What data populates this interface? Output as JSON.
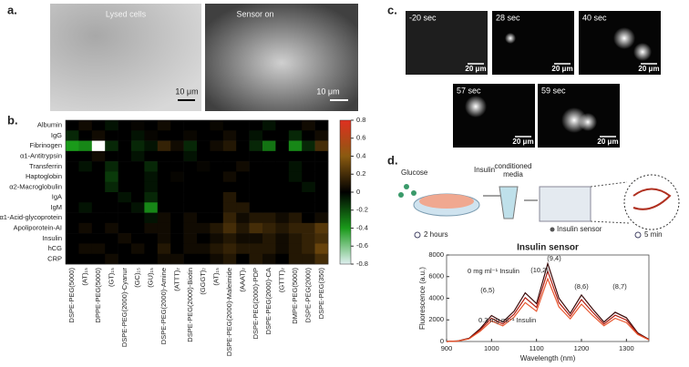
{
  "panel_labels": [
    "a.",
    "b.",
    "c.",
    "d."
  ],
  "panel_a": {
    "images": [
      {
        "label": "Lysed cells",
        "scale": "10 μm"
      },
      {
        "label": "Sensor on",
        "scale": "10 μm"
      }
    ]
  },
  "panel_c": {
    "frames": [
      {
        "time": "-20 sec",
        "scale": "20 μm"
      },
      {
        "time": "28 sec",
        "scale": "20 μm"
      },
      {
        "time": "40 sec",
        "scale": "20 μm"
      },
      {
        "time": "57 sec",
        "scale": "20 μm"
      },
      {
        "time": "59 sec",
        "scale": "20 μm"
      }
    ]
  },
  "panel_d": {
    "glucose": "Glucose",
    "insulin": "Insulin",
    "media": [
      "conditioned",
      "media"
    ],
    "sensor": "Insulin sensor",
    "time1": "2 hours",
    "time2": "5 min"
  },
  "chart_data": [
    {
      "type": "heatmap",
      "rows": [
        "Albumin",
        "IgG",
        "Fibrinogen",
        "α1-Antitrypsin",
        "Transferrin",
        "Haptoglobin",
        "α2-Macroglobulin",
        "IgA",
        "IgM",
        "α1-Acid-glycoprotein",
        "Apoliporotein-AI",
        "Insulin",
        "hCG",
        "CRP"
      ],
      "columns": [
        "DSPE-PEG(5000)",
        "(AT)₁₅",
        "DPPE-PEG(5000)",
        "(GT)₁₅",
        "DSPE-PEG(2000)-Cyanur",
        "(GC)₁₅",
        "(GU)₁₅",
        "DSPE-PEG(2000)-Amine",
        "(ATTT)₇",
        "DSPE-PEG(2000)-Biotin",
        "(GGGT)₇",
        "(AT)₁₅",
        "DSPE-PEG(2000)-Maleimide",
        "(AAAT)₇",
        "DSPE-PEG(2000)-PDP",
        "DSPE-PEG(2000)-CA",
        "(GTTT)₇",
        "DMPE-PEG(5000)",
        "DSPE-PEG(2000)",
        "DSPE-PEG(350)"
      ],
      "values": [
        [
          0,
          0.05,
          0,
          -0.05,
          0,
          0.02,
          0,
          0.05,
          0,
          0,
          0,
          0.03,
          0,
          0,
          0,
          -0.05,
          0,
          0,
          0.05,
          0
        ],
        [
          -0.1,
          0,
          0.05,
          0,
          0,
          -0.05,
          0.02,
          0,
          0,
          0.03,
          0,
          0,
          0.05,
          0,
          -0.05,
          0,
          0,
          -0.1,
          0,
          0.05
        ],
        [
          -0.4,
          -0.35,
          null,
          -0.1,
          0,
          -0.1,
          -0.05,
          0.15,
          0.05,
          -0.1,
          0,
          0.05,
          0.1,
          0,
          -0.1,
          -0.3,
          0,
          -0.35,
          -0.1,
          0.2
        ],
        [
          0,
          0,
          0.05,
          0,
          0,
          -0.05,
          0,
          0,
          0,
          -0.05,
          0,
          0,
          0,
          0,
          0,
          0,
          0,
          0,
          0,
          0
        ],
        [
          0,
          -0.05,
          0,
          -0.1,
          0,
          0,
          -0.1,
          0,
          0,
          0,
          0.02,
          0,
          0,
          0.05,
          0,
          0,
          0,
          -0.05,
          0,
          0
        ],
        [
          0,
          0,
          0,
          -0.15,
          0,
          0,
          -0.05,
          0,
          0.02,
          0,
          0,
          0,
          0.05,
          0,
          0,
          0,
          0,
          -0.05,
          0,
          0
        ],
        [
          0,
          0,
          0,
          -0.1,
          0,
          0,
          -0.05,
          0,
          0,
          0,
          0,
          0,
          0,
          0,
          0,
          0,
          0,
          0,
          -0.05,
          0
        ],
        [
          0,
          0,
          0,
          0,
          -0.05,
          0,
          -0.1,
          0,
          0,
          0,
          0,
          0,
          0.1,
          0,
          0,
          0,
          0,
          0,
          0,
          0
        ],
        [
          0,
          -0.05,
          0,
          0,
          0,
          -0.05,
          -0.35,
          0,
          0,
          0,
          0,
          0,
          0.1,
          0.1,
          0,
          0,
          0,
          0,
          0,
          0
        ],
        [
          0,
          0,
          0,
          0,
          0,
          0,
          -0.05,
          0.05,
          0,
          0.05,
          0,
          0,
          0.15,
          0.05,
          0.1,
          0.1,
          0.05,
          0.1,
          0,
          0.05
        ],
        [
          0,
          0.05,
          0,
          0.05,
          0,
          0,
          0.05,
          0.05,
          0,
          0.05,
          0.05,
          0.1,
          0.2,
          0.1,
          0.2,
          0.15,
          0.1,
          0.15,
          0.15,
          0.25
        ],
        [
          0,
          0,
          0,
          0,
          0.05,
          0,
          0,
          0.05,
          0,
          0.05,
          0,
          0.05,
          0.1,
          0.05,
          0.05,
          0.1,
          0.05,
          0.1,
          0.15,
          0.2
        ],
        [
          0,
          0.05,
          0.05,
          0,
          0,
          0.05,
          0,
          0.1,
          0,
          0.05,
          0.05,
          0.1,
          0.15,
          0.1,
          0.1,
          0.1,
          0.05,
          0.1,
          0.15,
          0.3
        ],
        [
          0,
          0,
          0,
          0.05,
          0,
          0,
          0,
          0.05,
          0.05,
          0,
          0,
          0.05,
          0.1,
          0,
          0.1,
          0.05,
          0,
          0.1,
          0.1,
          0.2
        ]
      ],
      "zlim": [
        -0.8,
        0.8
      ],
      "zticks": [
        0.8,
        0.6,
        0.4,
        0.2,
        0,
        -0.2,
        -0.4,
        -0.6,
        -0.8
      ]
    },
    {
      "type": "line",
      "title": "Insulin sensor",
      "x": [
        900,
        925,
        950,
        975,
        1000,
        1025,
        1050,
        1075,
        1100,
        1125,
        1150,
        1175,
        1200,
        1225,
        1250,
        1275,
        1300,
        1325,
        1350
      ],
      "series": [
        {
          "color": "#3a0a0a",
          "values": [
            0,
            50,
            300,
            1200,
            2400,
            1800,
            2800,
            4500,
            3500,
            7200,
            4000,
            2600,
            4300,
            3000,
            1800,
            2700,
            2200,
            800,
            200
          ]
        },
        {
          "color": "#b01c10",
          "values": [
            0,
            45,
            270,
            1080,
            2150,
            1620,
            2520,
            4050,
            3150,
            6500,
            3600,
            2350,
            3870,
            2700,
            1620,
            2430,
            1980,
            720,
            180
          ]
        },
        {
          "color": "#e8562e",
          "values": [
            0,
            40,
            240,
            950,
            1900,
            1450,
            2250,
            3600,
            2800,
            5800,
            3200,
            2100,
            3450,
            2400,
            1450,
            2150,
            1750,
            650,
            150
          ]
        }
      ],
      "xlim": [
        900,
        1350
      ],
      "ylim": [
        0,
        8000
      ],
      "xticks": [
        900,
        1000,
        1100,
        1200,
        1300
      ],
      "yticks": [
        0,
        2000,
        4000,
        6000,
        8000
      ],
      "xlabel": "Wavelength (nm)",
      "ylabel": "Fluorescence (a.u.)",
      "annotations": [
        "0 mg ml⁻¹ Insulin",
        "0.3 mg ml⁻¹ Insulin",
        "(9,4)",
        "(10,2)",
        "(6,5)",
        "(8,6)",
        "(8,7)"
      ]
    }
  ]
}
